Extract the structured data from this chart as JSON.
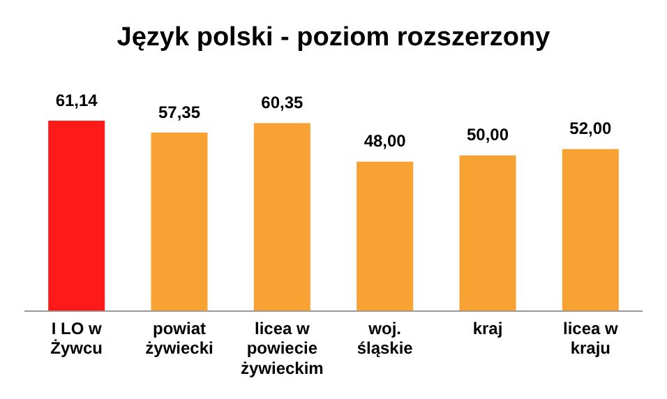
{
  "chart_data": {
    "type": "bar",
    "title": "Język polski - poziom rozszerzony",
    "categories": [
      "I LO w Żywcu",
      "powiat żywiecki",
      "licea w powiecie żywieckim",
      "woj. śląskie",
      "kraj",
      "licea w kraju"
    ],
    "values": [
      61.14,
      57.35,
      60.35,
      48.0,
      50.0,
      52.0
    ],
    "colors": [
      "#ff1a1a",
      "#f7a233",
      "#f7a233",
      "#f7a233",
      "#f7a233",
      "#f7a233"
    ],
    "value_labels": [
      "61,14",
      "57,35",
      "60,35",
      "48,00",
      "50,00",
      "52,00"
    ],
    "tick_labels": "x",
    "grid": false,
    "legend": false
  }
}
